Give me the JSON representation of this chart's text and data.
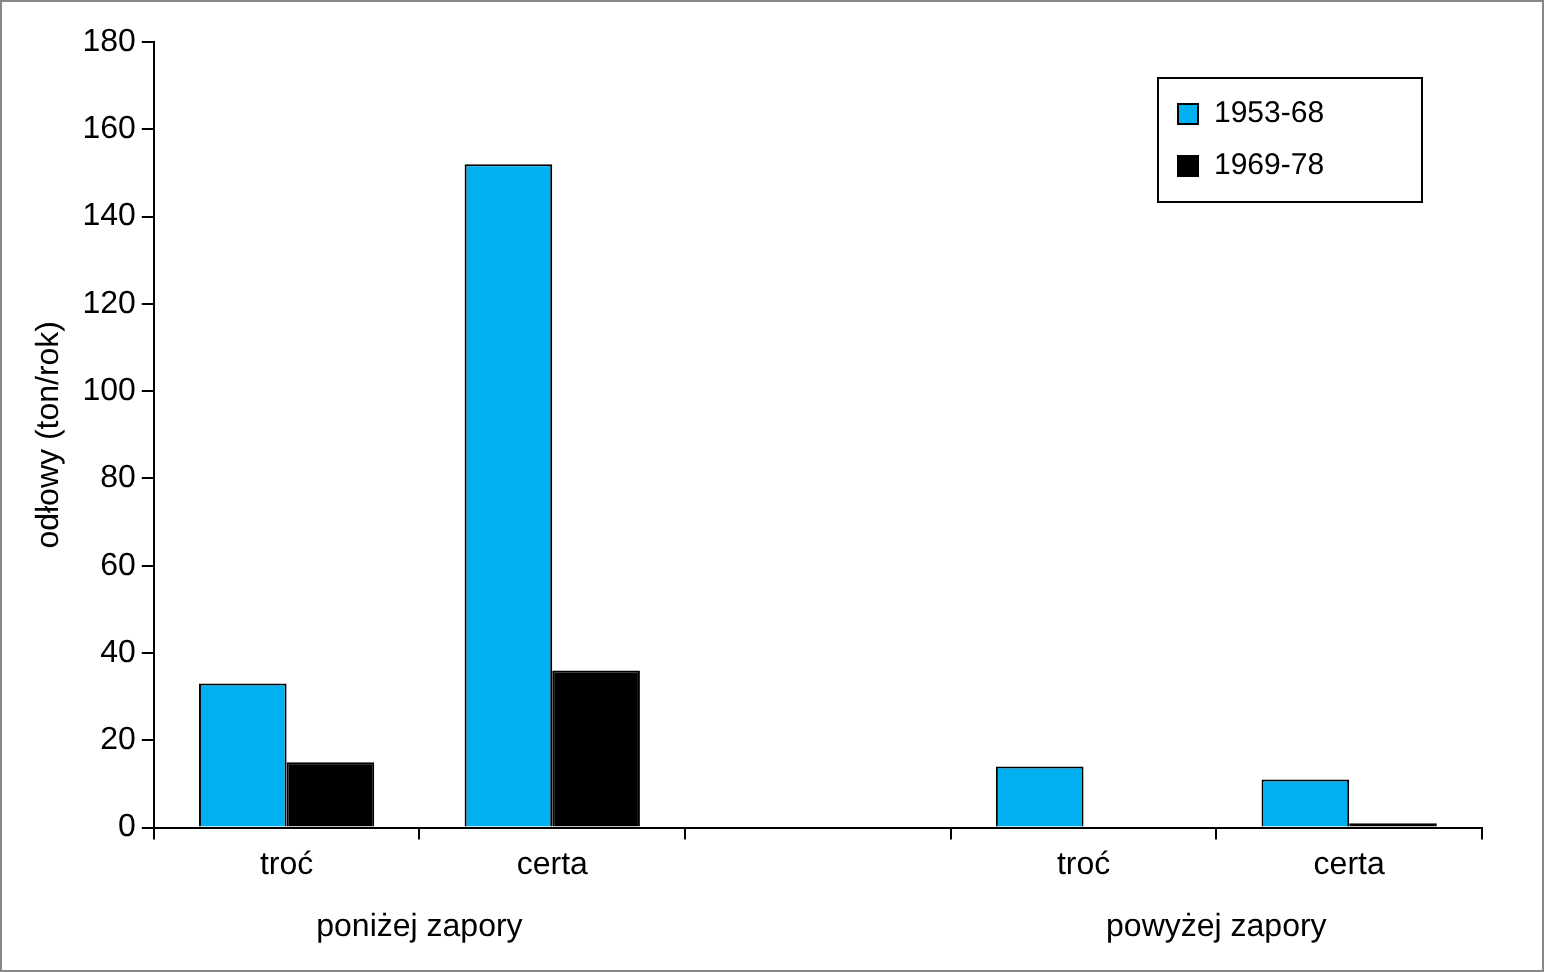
{
  "chart_data": {
    "type": "bar",
    "ylabel": "odłowy (ton/rok)",
    "categories": [
      "troć",
      "certa",
      null,
      "troć",
      "certa"
    ],
    "series": [
      {
        "name": "1953-68",
        "color": "#00b0f0",
        "values": [
          33,
          152,
          null,
          14,
          11
        ]
      },
      {
        "name": "1969-78",
        "color": "#000000",
        "values": [
          15,
          36,
          null,
          0,
          1
        ]
      }
    ],
    "ylim": [
      0,
      180
    ],
    "yticks": [
      0,
      20,
      40,
      60,
      80,
      100,
      120,
      140,
      160,
      180
    ],
    "grid": false,
    "legend": "top right",
    "annotations": [
      "poniżej zapory",
      "powyżej zapory"
    ]
  }
}
